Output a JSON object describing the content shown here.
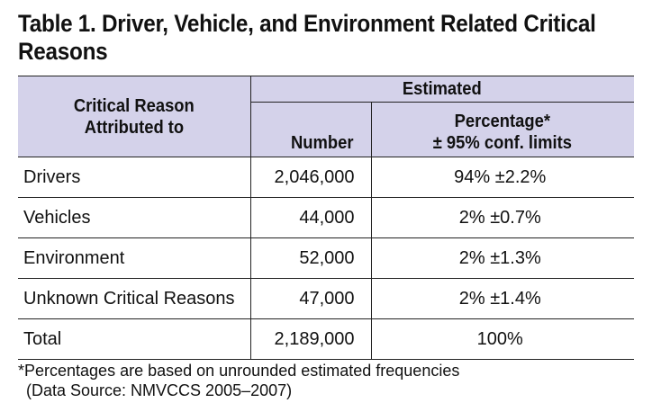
{
  "title": {
    "line1": "Table 1. Driver, Vehicle, and Environment Related Critical",
    "line2": "Reasons"
  },
  "table": {
    "header": {
      "reason_line1": "Critical Reason",
      "reason_line2": "Attributed to",
      "estimated": "Estimated",
      "number": "Number",
      "percentage_line1": "Percentage*",
      "percentage_line2": "± 95% conf. limits",
      "header_bg_color": "#d4d2ea"
    },
    "rows": [
      {
        "reason": "Drivers",
        "number": "2,046,000",
        "percentage": "94% ±2.2%"
      },
      {
        "reason": "Vehicles",
        "number": "44,000",
        "percentage": "2% ±0.7%"
      },
      {
        "reason": "Environment",
        "number": "52,000",
        "percentage": "2% ±1.3%"
      },
      {
        "reason": "Unknown Critical Reasons",
        "number": "47,000",
        "percentage": "2% ±1.4%"
      },
      {
        "reason": "Total",
        "number": "2,189,000",
        "percentage": "100%"
      }
    ]
  },
  "footnote": {
    "note": "*Percentages are based on unrounded estimated frequencies",
    "source": "(Data Source: NMVCCS 2005–2007)"
  }
}
